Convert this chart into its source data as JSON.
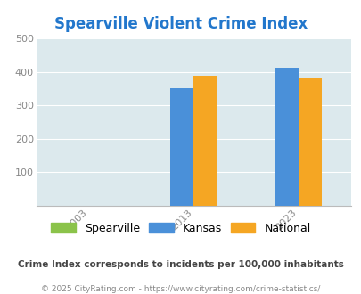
{
  "title": "Spearville Violent Crime Index",
  "title_color": "#2277cc",
  "plot_bg_color": "#dce9ed",
  "years": [
    "2003",
    "2013",
    "2023"
  ],
  "spearville": [
    0,
    0,
    0
  ],
  "kansas": [
    0,
    352,
    412
  ],
  "national": [
    0,
    387,
    379
  ],
  "bar_width": 0.22,
  "spearville_color": "#8bc34a",
  "kansas_color": "#4a90d9",
  "national_color": "#f5a623",
  "ylim": [
    0,
    500
  ],
  "yticks": [
    0,
    100,
    200,
    300,
    400,
    500
  ],
  "legend_labels": [
    "Spearville",
    "Kansas",
    "National"
  ],
  "footnote1": "Crime Index corresponds to incidents per 100,000 inhabitants",
  "footnote2": "© 2025 CityRating.com - https://www.cityrating.com/crime-statistics/",
  "footnote1_color": "#444444",
  "footnote2_color": "#888888",
  "grid_color": "#ffffff",
  "tick_label_color": "#888888",
  "title_fontsize": 12
}
